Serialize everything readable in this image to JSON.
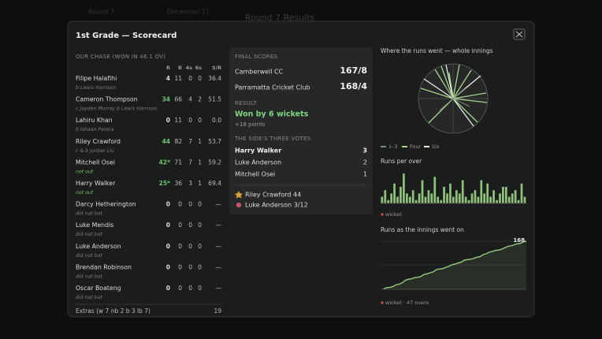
{
  "background": {
    "title": "Round 7 Results",
    "tab_1": "Round 7",
    "tab_2": "December 11"
  },
  "header": {
    "title": "1st Grade — Scorecard"
  },
  "batting": {
    "heading": "OUR CHASE (WON IN 46.1 OV)",
    "columns": [
      "R",
      "B",
      "4s",
      "6s",
      "S/R"
    ],
    "rows": [
      {
        "name": "Filipe Halafihi",
        "how_out": "b Lewis Harrison",
        "cells": [
          "4",
          "11",
          "0",
          "0",
          "36.4"
        ]
      },
      {
        "name": "Cameron Thompson",
        "how_out": "c Jayden Murray b Lewis Harrison",
        "cells": [
          "34",
          "66",
          "4",
          "2",
          "51.5"
        ]
      },
      {
        "name": "Lahiru Khan",
        "how_out": "b Ishaan Perera",
        "cells": [
          "0",
          "11",
          "0",
          "0",
          "0.0"
        ]
      },
      {
        "name": "Riley Crawford",
        "how_out": "c & b Jordan Liu",
        "cells": [
          "44",
          "82",
          "7",
          "1",
          "53.7"
        ]
      },
      {
        "name": "Mitchell Osei",
        "how_out": "not out",
        "cells": [
          "42*",
          "71",
          "7",
          "1",
          "59.2"
        ]
      },
      {
        "name": "Harry Walker",
        "how_out": "not out",
        "cells": [
          "25*",
          "36",
          "3",
          "1",
          "69.4"
        ]
      },
      {
        "name": "Darcy Hetherington",
        "how_out": "did not bat",
        "cells": [
          "0",
          "0",
          "0",
          "0",
          "—"
        ]
      },
      {
        "name": "Luke Mendis",
        "how_out": "did not bat",
        "cells": [
          "0",
          "0",
          "0",
          "0",
          "—"
        ]
      },
      {
        "name": "Luke Anderson",
        "how_out": "did not bat",
        "cells": [
          "0",
          "0",
          "0",
          "0",
          "—"
        ]
      },
      {
        "name": "Brendan Robinson",
        "how_out": "did not bat",
        "cells": [
          "0",
          "0",
          "0",
          "0",
          "—"
        ]
      },
      {
        "name": "Oscar Boateng",
        "how_out": "did not bat",
        "cells": [
          "0",
          "0",
          "0",
          "0",
          "—"
        ]
      }
    ],
    "extras_label": "Extras (w 7 nb 2 b 3 lb 7)",
    "extras": "19"
  },
  "summary": {
    "final_heading": "FINAL SCORES",
    "teams": [
      {
        "name": "Camberwell CC",
        "score": "167/8"
      },
      {
        "name": "Parramatta Cricket Club",
        "score": "168/4"
      }
    ],
    "result_heading": "RESULT",
    "result": "Won by 6 wickets",
    "points": "+18 points",
    "votes_heading": "THE SIDE'S THREE VOTES",
    "votes": [
      {
        "name": "Harry Walker",
        "votes": "3"
      },
      {
        "name": "Luke Anderson",
        "votes": "2"
      },
      {
        "name": "Mitchell Osei",
        "votes": "1"
      }
    ],
    "performers": [
      "Riley Crawford 44",
      "Luke Anderson 3/12"
    ]
  },
  "wagon": {
    "title": "Where the runs went — whole innings",
    "legend": [
      "1–3",
      "Four",
      "Six"
    ]
  },
  "chart_data": {
    "type": "bar",
    "title": "Runs per over",
    "legend": "wicket",
    "color": "#8fc27a",
    "values": [
      2,
      4,
      1,
      3,
      6,
      2,
      5,
      9,
      3,
      2,
      4,
      1,
      3,
      7,
      2,
      4,
      3,
      8,
      2,
      1,
      5,
      3,
      6,
      2,
      4,
      3,
      7,
      2,
      1,
      3,
      4,
      2,
      7,
      3,
      6,
      2,
      4,
      1,
      3,
      5,
      5,
      2,
      3,
      4,
      1,
      6,
      2
    ]
  },
  "worm": {
    "title": "Runs as the innings went on",
    "end_label": "168",
    "legend": "wicket · 47 overs"
  }
}
